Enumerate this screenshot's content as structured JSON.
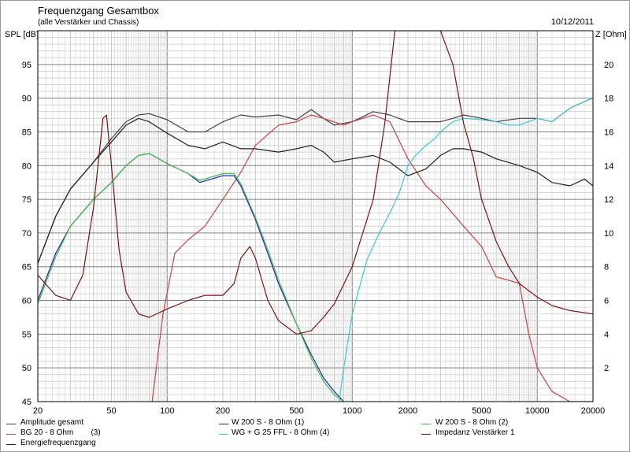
{
  "header": {
    "title": "Frequenzgang Gesamtbox",
    "subtitle": "(alle Verstärker und Chassis)",
    "date": "10/12/2011"
  },
  "chart_data": {
    "type": "line",
    "title": "Frequenzgang Gesamtbox",
    "subtitle": "(alle Verstärker und Chassis)",
    "xlabel": "",
    "ylabel_left": "SPL [dB]",
    "ylabel_right": "Z [Ohm]",
    "x_scale": "log",
    "xlim": [
      20,
      20000
    ],
    "ylim": [
      45,
      100
    ],
    "ylim_right": [
      0,
      22
    ],
    "x_ticks": [
      "20",
      "50",
      "100",
      "200",
      "500",
      "1000",
      "2000",
      "5000",
      "10000",
      "20000"
    ],
    "y_ticks": [
      "45",
      "50",
      "55",
      "60",
      "65",
      "70",
      "75",
      "80",
      "85",
      "90",
      "95"
    ],
    "y_ticks_right": [
      "2",
      "4",
      "6",
      "8",
      "10",
      "12",
      "14",
      "16",
      "18",
      "20"
    ],
    "grid": true,
    "legend_position": "bottom",
    "series": [
      {
        "name": "Amplitude gesamt",
        "color": "#404040",
        "axis": "left",
        "x": [
          20,
          25,
          30,
          40,
          50,
          60,
          70,
          80,
          100,
          130,
          160,
          200,
          250,
          300,
          400,
          500,
          600,
          700,
          800,
          1000,
          1300,
          1600,
          2000,
          2500,
          3000,
          3500,
          4000,
          5000,
          6000,
          8000,
          10000,
          12000,
          15000,
          18000,
          20000
        ],
        "y": [
          65.5,
          72.5,
          76.5,
          80.5,
          84,
          86.5,
          87.5,
          87.7,
          86.8,
          85,
          85,
          86.5,
          87.5,
          87.2,
          87.5,
          86.8,
          88.3,
          87,
          86,
          86.5,
          88,
          87.5,
          86.5,
          86.5,
          86.5,
          87,
          87.5,
          87,
          86.5,
          87,
          87,
          86.5,
          88.5,
          89.5,
          90
        ]
      },
      {
        "name": "BG 20 - 8 Ohm (3)",
        "color": "#d04040",
        "axis": "left",
        "x": [
          83,
          95,
          110,
          130,
          160,
          200,
          250,
          300,
          400,
          500,
          600,
          700,
          900,
          1000,
          1300,
          1600,
          2000,
          2500,
          3000,
          4000,
          5000,
          6000,
          7000,
          8000,
          9000,
          10000,
          12000,
          15000,
          20000
        ],
        "y": [
          45,
          58,
          67,
          69,
          71,
          75,
          79,
          83,
          86,
          86.5,
          87.5,
          87,
          86,
          86.5,
          87.5,
          86.5,
          81,
          77,
          75,
          71,
          68,
          63.5,
          63,
          62.5,
          55,
          50,
          46.5,
          45,
          45
        ]
      },
      {
        "name": "Energiefrequenzgang",
        "color": "#202020",
        "axis": "left",
        "x": [
          20,
          25,
          30,
          40,
          50,
          60,
          70,
          80,
          100,
          130,
          160,
          200,
          250,
          300,
          400,
          500,
          600,
          700,
          800,
          1000,
          1300,
          1600,
          2000,
          2500,
          3000,
          3500,
          4000,
          5000,
          6000,
          8000,
          10000,
          12000,
          15000,
          18000,
          20000
        ],
        "y": [
          65.5,
          72.5,
          76.5,
          80.5,
          83.5,
          86,
          87,
          86.5,
          84.8,
          83,
          82.5,
          83.5,
          82.5,
          82.5,
          82,
          82.5,
          83,
          82,
          80.5,
          81,
          81.5,
          80.5,
          78.5,
          79.5,
          81.5,
          82.5,
          82.5,
          82,
          81,
          80,
          79,
          77.5,
          77,
          78,
          77
        ]
      },
      {
        "name": "W 200 S - 8 Ohm (1)",
        "color": "#2020c0",
        "axis": "left",
        "x": [
          20,
          25,
          30,
          40,
          50,
          60,
          70,
          80,
          100,
          130,
          150,
          200,
          230,
          250,
          300,
          350,
          400,
          500,
          600,
          700,
          800,
          900
        ],
        "y": [
          60,
          67,
          71,
          75,
          77.5,
          80,
          81.5,
          81.8,
          80.3,
          78.8,
          77.5,
          78.5,
          78.5,
          77,
          72,
          67,
          62.5,
          56.5,
          52,
          48.5,
          46.5,
          45
        ]
      },
      {
        "name": "WG + G 25 FFL - 8 Ohm (4)",
        "color": "#40c8d0",
        "axis": "left",
        "x": [
          850,
          900,
          1000,
          1200,
          1400,
          1600,
          1800,
          2000,
          2200,
          2500,
          2800,
          3000,
          3500,
          4000,
          5000,
          6000,
          7000,
          8000,
          10000,
          12000,
          15000,
          18000,
          20000
        ],
        "y": [
          45,
          50,
          58,
          66,
          70,
          73,
          76,
          80,
          81.5,
          83,
          84,
          85,
          86.5,
          87,
          86.8,
          86.5,
          86,
          86,
          87,
          86.5,
          88.5,
          89.5,
          90
        ]
      },
      {
        "name": "W 200 S - 8 Ohm (2)",
        "color": "#40c040",
        "axis": "left",
        "x": [
          20,
          25,
          30,
          40,
          50,
          60,
          70,
          80,
          100,
          130,
          150,
          200,
          230,
          250,
          300,
          350,
          400,
          500,
          600,
          700,
          800,
          900
        ],
        "y": [
          59.5,
          66.5,
          71,
          75,
          77.5,
          80,
          81.5,
          81.8,
          80.3,
          78.8,
          77.8,
          78.8,
          78.8,
          77.3,
          72.3,
          67.5,
          63,
          56.5,
          51.5,
          48,
          46,
          45
        ]
      },
      {
        "name": "Impedanz Verstärker 1",
        "color": "#801010",
        "axis": "right",
        "x": [
          20,
          25,
          30,
          35,
          40,
          45,
          47,
          50,
          55,
          60,
          70,
          80,
          100,
          130,
          160,
          200,
          230,
          250,
          280,
          300,
          350,
          400,
          500,
          600,
          700,
          800,
          1000,
          1300,
          1500,
          1700,
          2000,
          2500,
          3000,
          3500,
          4000,
          4500,
          5000,
          6000,
          7000,
          8000,
          10000,
          12000,
          15000,
          20000
        ],
        "y": [
          7.5,
          6.3,
          6.0,
          7.5,
          11.5,
          16.8,
          17.0,
          14.0,
          9.0,
          6.5,
          5.2,
          5.0,
          5.5,
          6.0,
          6.3,
          6.3,
          7.0,
          8.5,
          9.2,
          8.5,
          6.0,
          4.8,
          4.0,
          4.2,
          5.0,
          5.8,
          8.0,
          12.0,
          16.5,
          22,
          22,
          22,
          22,
          20,
          16.5,
          14.5,
          12,
          9.5,
          8,
          7,
          6.2,
          5.7,
          5.4,
          5.2
        ]
      }
    ]
  },
  "legend": [
    {
      "label": "Amplitude gesamt",
      "color": "#404040"
    },
    {
      "label": "W 200 S - 8 Ohm (1)",
      "color": "#2020c0"
    },
    {
      "label": "W 200 S - 8 Ohm (2)",
      "color": "#40c040"
    },
    {
      "label": "BG 20 - 8 Ohm        (3)",
      "color": "#d04040"
    },
    {
      "label": "WG + G 25 FFL - 8 Ohm (4)",
      "color": "#40c8d0"
    },
    {
      "label": "Impedanz Verstärker 1",
      "color": "#801010"
    },
    {
      "label": "Energiefrequenzgang",
      "color": "#202020"
    }
  ]
}
